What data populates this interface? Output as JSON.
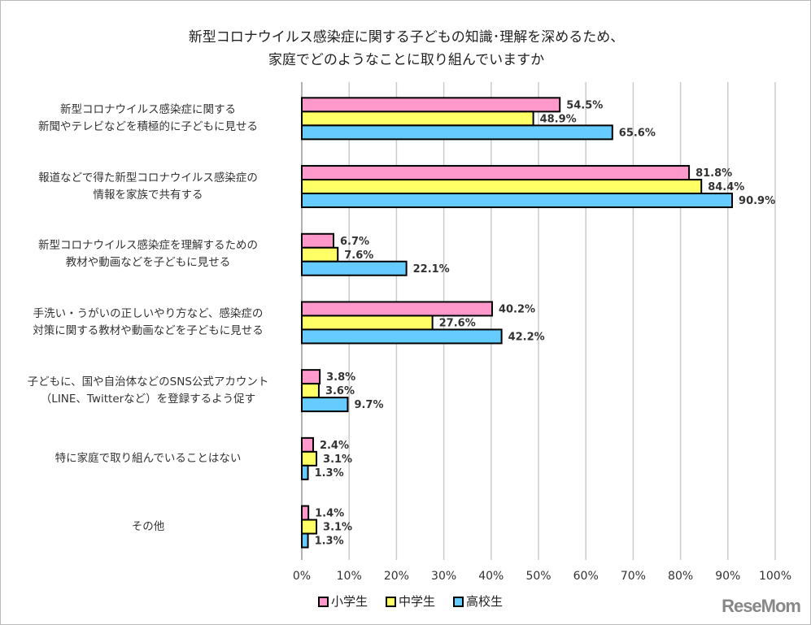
{
  "chart_data": {
    "type": "bar",
    "orientation": "horizontal",
    "title": [
      "新型コロナウイルス感染症に関する子どもの知識･理解を深めるため、",
      "家庭でどのようなことに取り組んでいますか"
    ],
    "categories": [
      [
        "新型コロナウイルス感染症に関する",
        "新聞やテレビなどを積極的に子どもに見せる"
      ],
      [
        "報道などで得た新型コロナウイルス感染症の",
        "情報を家族で共有する"
      ],
      [
        "新型コロナウイルス感染症を理解するための",
        "教材や動画などを子どもに見せる"
      ],
      [
        "手洗い・うがいの正しいやり方など、感染症の",
        "対策に関する教材や動画などを子どもに見せる"
      ],
      [
        "子どもに、国や自治体などのSNS公式アカウント",
        "（LINE、Twitterなど）を登録するよう促す"
      ],
      [
        "特に家庭で取り組んでいることはない"
      ],
      [
        "その他"
      ]
    ],
    "series": [
      {
        "name": "小学生",
        "color": "#ff99cc",
        "values": [
          54.5,
          81.8,
          6.7,
          40.2,
          3.8,
          2.4,
          1.4
        ]
      },
      {
        "name": "中学生",
        "color": "#ffff66",
        "values": [
          48.9,
          84.4,
          7.6,
          27.6,
          3.6,
          3.1,
          3.1
        ]
      },
      {
        "name": "高校生",
        "color": "#66ccff",
        "values": [
          65.6,
          90.9,
          22.1,
          42.2,
          9.7,
          1.3,
          1.3
        ]
      }
    ],
    "xlim": [
      0,
      100
    ],
    "xticks": [
      "0%",
      "10%",
      "20%",
      "30%",
      "40%",
      "50%",
      "60%",
      "70%",
      "80%",
      "90%",
      "100%"
    ],
    "grid": true,
    "legend": "bottom"
  },
  "logo": "ReseMom"
}
